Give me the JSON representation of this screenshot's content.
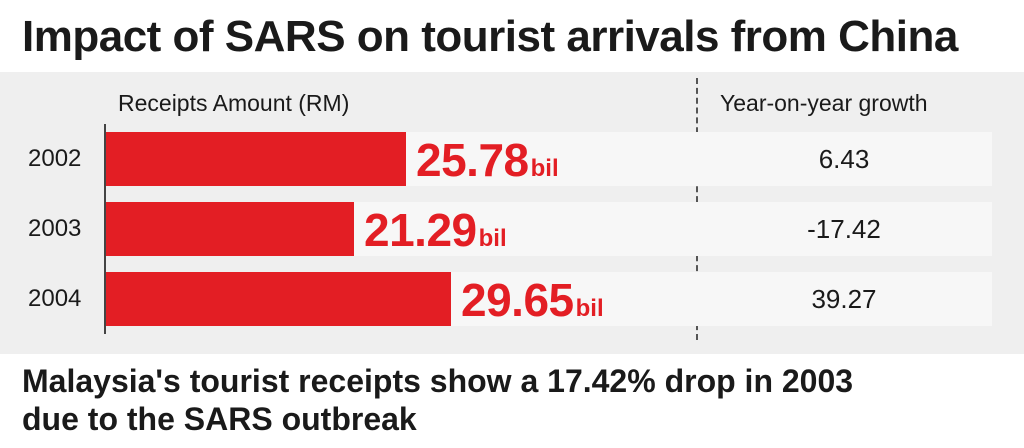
{
  "title": "Impact of SARS on tourist arrivals from China",
  "subtitle_line1": "Malaysia's tourist receipts show a 17.42% drop in 2003",
  "subtitle_line2": "due to the SARS outbreak",
  "colors": {
    "bar": "#e31e24",
    "panel": "#efefef",
    "text": "#1a1a1a"
  },
  "chart_data": {
    "type": "bar",
    "orientation": "horizontal",
    "title": "Impact of SARS on tourist arrivals from China",
    "xlabel": "Receipts Amount (RM)",
    "categories": [
      "2002",
      "2003",
      "2004"
    ],
    "series": [
      {
        "name": "Receipts Amount (RM)",
        "values": [
          25.78,
          21.29,
          29.65
        ]
      }
    ],
    "value_labels": [
      "25.78",
      "21.29",
      "29.65"
    ],
    "unit": "bil",
    "xlim": [
      0,
      29.65
    ],
    "table_column": {
      "header": "Year-on-year growth",
      "values": [
        "6.43",
        "-17.42",
        "39.27"
      ]
    },
    "grid": false
  }
}
